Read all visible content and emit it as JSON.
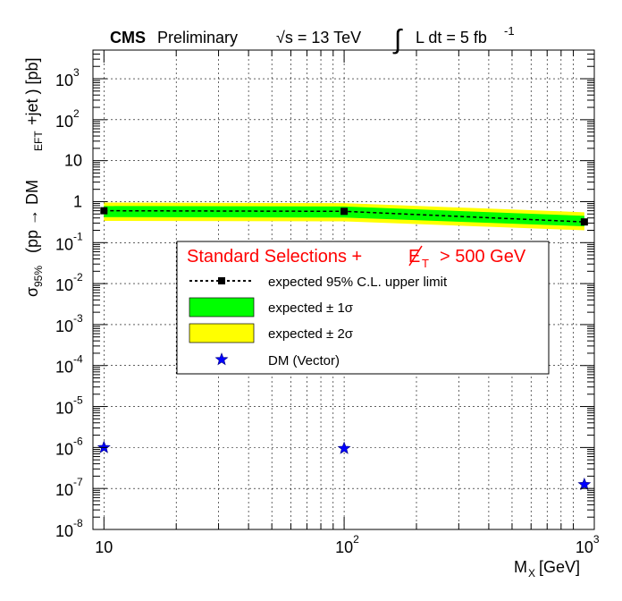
{
  "header": {
    "experiment": "CMS",
    "status": "Preliminary",
    "energy": "√s = 13 TeV",
    "lumi_integral": "∫",
    "lumi_text": "L dt = 5 fb",
    "lumi_exp": "-1"
  },
  "chart_data": {
    "type": "line",
    "xscale": "log",
    "yscale": "log",
    "xlim": [
      9,
      1100
    ],
    "ylim": [
      1e-08,
      5000
    ],
    "xlabel": "M",
    "xlabel_sub": "X",
    "xlabel_unit": "[GeV]",
    "ylabel": "σ",
    "ylabel_sub": "95%",
    "ylabel_rest": "(pp → DM",
    "ylabel_sub2": "EFT",
    "ylabel_rest2": "+jet ) [pb]",
    "grid": true,
    "x_ticks": [
      {
        "value": 10,
        "base": "10",
        "exp": ""
      },
      {
        "value": 100,
        "base": "10",
        "exp": "2"
      },
      {
        "value": 1000,
        "base": "10",
        "exp": "3"
      }
    ],
    "y_ticks": [
      {
        "value": 1e-08,
        "base": "10",
        "exp": "-8"
      },
      {
        "value": 1e-07,
        "base": "10",
        "exp": "-7"
      },
      {
        "value": 1e-06,
        "base": "10",
        "exp": "-6"
      },
      {
        "value": 1e-05,
        "base": "10",
        "exp": "-5"
      },
      {
        "value": 0.0001,
        "base": "10",
        "exp": "-4"
      },
      {
        "value": 0.001,
        "base": "10",
        "exp": "-3"
      },
      {
        "value": 0.01,
        "base": "10",
        "exp": "-2"
      },
      {
        "value": 0.1,
        "base": "10",
        "exp": "-1"
      },
      {
        "value": 1,
        "base": "1",
        "exp": ""
      },
      {
        "value": 10,
        "base": "10",
        "exp": ""
      },
      {
        "value": 100,
        "base": "10",
        "exp": "2"
      },
      {
        "value": 1000,
        "base": "10",
        "exp": "3"
      }
    ],
    "expected": {
      "x": [
        10,
        100,
        1000
      ],
      "y": [
        0.6,
        0.58,
        0.32
      ],
      "band1_low": [
        0.42,
        0.41,
        0.25
      ],
      "band1_high": [
        0.78,
        0.76,
        0.45
      ],
      "band2_low": [
        0.34,
        0.33,
        0.2
      ],
      "band2_high": [
        0.95,
        0.92,
        0.55
      ]
    },
    "dm_vector": {
      "x": [
        10,
        100,
        1000
      ],
      "y": [
        1e-06,
        9.5e-07,
        1.25e-07
      ]
    },
    "legend": {
      "title_main": "Standard Selections +",
      "title_met": "E",
      "title_met_sub": "T",
      "title_cut": "> 500 GeV",
      "entries": [
        "expected 95% C.L. upper limit",
        "expected ± 1σ",
        "expected ± 2σ",
        "DM (Vector)"
      ]
    },
    "colors": {
      "band1": "#00ff00",
      "band2": "#ffff00",
      "marker": "#000000",
      "dm": "#0000ff",
      "legend_title": "#ff0000"
    }
  }
}
